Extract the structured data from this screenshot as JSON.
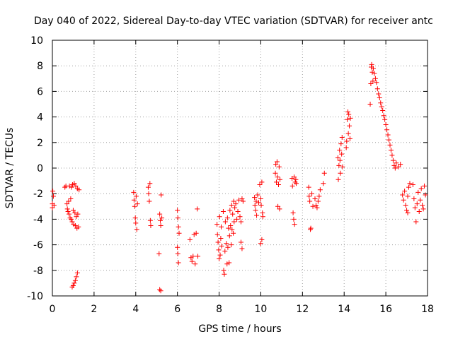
{
  "chart_data": {
    "type": "scatter",
    "title": "Day 040 of 2022, Sidereal Day-to-day VTEC variation (SDTVAR) for receiver antc",
    "xlabel": "GPS time / hours",
    "ylabel": "SDTVAR / TECUs",
    "xlim": [
      0,
      18
    ],
    "ylim": [
      -10,
      10
    ],
    "xticks": [
      0,
      2,
      4,
      6,
      8,
      10,
      12,
      14,
      16,
      18
    ],
    "yticks": [
      -10,
      -8,
      -6,
      -4,
      -2,
      0,
      2,
      4,
      6,
      8,
      10
    ],
    "grid": true,
    "marker": "plus",
    "color": "#ff0000",
    "series": [
      {
        "name": "SDTVAR",
        "points": [
          [
            0.0,
            -2.8
          ],
          [
            0.0,
            -3.1
          ],
          [
            0.02,
            -1.8
          ],
          [
            0.05,
            -2.2
          ],
          [
            0.08,
            -2.9
          ],
          [
            0.6,
            -1.5
          ],
          [
            0.65,
            -1.4
          ],
          [
            0.7,
            -2.8
          ],
          [
            0.72,
            -3.2
          ],
          [
            0.75,
            -3.4
          ],
          [
            0.78,
            -2.6
          ],
          [
            0.8,
            -3.6
          ],
          [
            0.82,
            -1.4
          ],
          [
            0.85,
            -3.9
          ],
          [
            0.88,
            -2.4
          ],
          [
            0.9,
            -4.0
          ],
          [
            0.92,
            -1.5
          ],
          [
            0.95,
            -4.2
          ],
          [
            0.97,
            -1.3
          ],
          [
            1.0,
            -3.3
          ],
          [
            1.02,
            -4.4
          ],
          [
            1.05,
            -1.2
          ],
          [
            1.08,
            -3.5
          ],
          [
            1.1,
            -4.5
          ],
          [
            1.12,
            -1.4
          ],
          [
            1.15,
            -3.8
          ],
          [
            1.18,
            -4.7
          ],
          [
            1.2,
            -1.6
          ],
          [
            1.22,
            -3.6
          ],
          [
            1.25,
            -4.6
          ],
          [
            1.28,
            -1.7
          ],
          [
            0.95,
            -9.3
          ],
          [
            1.0,
            -9.2
          ],
          [
            1.05,
            -9.0
          ],
          [
            1.1,
            -8.8
          ],
          [
            1.15,
            -8.5
          ],
          [
            1.2,
            -8.2
          ],
          [
            3.9,
            -1.9
          ],
          [
            3.92,
            -2.5
          ],
          [
            3.95,
            -3.0
          ],
          [
            3.98,
            -3.9
          ],
          [
            4.0,
            -4.3
          ],
          [
            4.02,
            -2.2
          ],
          [
            4.05,
            -4.8
          ],
          [
            4.08,
            -2.8
          ],
          [
            4.6,
            -1.5
          ],
          [
            4.62,
            -2.0
          ],
          [
            4.65,
            -2.6
          ],
          [
            4.68,
            -1.2
          ],
          [
            4.7,
            -4.1
          ],
          [
            4.72,
            -4.5
          ],
          [
            5.15,
            -3.6
          ],
          [
            5.18,
            -4.1
          ],
          [
            5.2,
            -4.5
          ],
          [
            5.22,
            -2.1
          ],
          [
            5.25,
            -3.9
          ],
          [
            5.12,
            -6.7
          ],
          [
            5.15,
            -9.5
          ],
          [
            5.2,
            -9.6
          ],
          [
            6.0,
            -3.3
          ],
          [
            6.02,
            -3.9
          ],
          [
            6.05,
            -4.6
          ],
          [
            6.0,
            -6.2
          ],
          [
            6.02,
            -6.7
          ],
          [
            6.05,
            -7.4
          ],
          [
            6.08,
            -5.1
          ],
          [
            6.6,
            -5.6
          ],
          [
            6.65,
            -7.0
          ],
          [
            6.7,
            -7.3
          ],
          [
            6.75,
            -6.9
          ],
          [
            6.8,
            -5.2
          ],
          [
            6.85,
            -7.5
          ],
          [
            6.9,
            -5.1
          ],
          [
            6.95,
            -3.2
          ],
          [
            6.98,
            -6.9
          ],
          [
            7.9,
            -4.4
          ],
          [
            7.92,
            -5.2
          ],
          [
            7.95,
            -5.8
          ],
          [
            7.98,
            -6.4
          ],
          [
            8.0,
            -7.1
          ],
          [
            8.02,
            -3.8
          ],
          [
            8.05,
            -6.8
          ],
          [
            8.08,
            -5.5
          ],
          [
            8.1,
            -4.6
          ],
          [
            8.12,
            -6.1
          ],
          [
            8.2,
            -3.4
          ],
          [
            8.22,
            -8.0
          ],
          [
            8.25,
            -8.3
          ],
          [
            8.28,
            -6.5
          ],
          [
            8.3,
            -4.2
          ],
          [
            8.35,
            -5.9
          ],
          [
            8.38,
            -7.5
          ],
          [
            8.4,
            -3.9
          ],
          [
            8.42,
            -6.2
          ],
          [
            8.45,
            -4.7
          ],
          [
            8.48,
            -7.4
          ],
          [
            8.5,
            -5.3
          ],
          [
            8.52,
            -3.3
          ],
          [
            8.55,
            -4.5
          ],
          [
            8.58,
            -6.0
          ],
          [
            8.6,
            -2.9
          ],
          [
            8.62,
            -4.8
          ],
          [
            8.65,
            -3.6
          ],
          [
            8.68,
            -5.1
          ],
          [
            8.7,
            -2.6
          ],
          [
            8.72,
            -4.2
          ],
          [
            8.75,
            -3.1
          ],
          [
            8.8,
            -2.8
          ],
          [
            8.85,
            -4.0
          ],
          [
            8.9,
            -3.4
          ],
          [
            8.95,
            -2.5
          ],
          [
            9.0,
            -3.8
          ],
          [
            9.05,
            -4.2
          ],
          [
            9.1,
            -2.4
          ],
          [
            9.15,
            -2.6
          ],
          [
            9.05,
            -5.8
          ],
          [
            9.1,
            -6.3
          ],
          [
            9.7,
            -2.3
          ],
          [
            9.72,
            -2.9
          ],
          [
            9.75,
            -3.3
          ],
          [
            9.78,
            -2.6
          ],
          [
            9.8,
            -3.7
          ],
          [
            9.85,
            -2.1
          ],
          [
            9.9,
            -2.7
          ],
          [
            9.95,
            -1.3
          ],
          [
            10.0,
            -2.4
          ],
          [
            10.02,
            -2.9
          ],
          [
            10.05,
            -1.1
          ],
          [
            10.08,
            -3.5
          ],
          [
            10.1,
            -3.8
          ],
          [
            10.0,
            -5.9
          ],
          [
            10.05,
            -5.6
          ],
          [
            10.7,
            -0.4
          ],
          [
            10.72,
            0.3
          ],
          [
            10.75,
            -1.1
          ],
          [
            10.78,
            0.5
          ],
          [
            10.8,
            -0.7
          ],
          [
            10.82,
            -3.0
          ],
          [
            10.85,
            -1.3
          ],
          [
            10.88,
            0.1
          ],
          [
            10.9,
            -3.2
          ],
          [
            10.92,
            -0.9
          ],
          [
            11.5,
            -0.8
          ],
          [
            11.52,
            -1.4
          ],
          [
            11.55,
            -3.5
          ],
          [
            11.58,
            -4.0
          ],
          [
            11.6,
            -0.7
          ],
          [
            11.62,
            -4.4
          ],
          [
            11.65,
            -1.1
          ],
          [
            11.68,
            -0.9
          ],
          [
            11.7,
            -1.2
          ],
          [
            12.3,
            -1.5
          ],
          [
            12.32,
            -2.2
          ],
          [
            12.35,
            -2.6
          ],
          [
            12.38,
            -4.8
          ],
          [
            12.4,
            -4.7
          ],
          [
            12.45,
            -2.0
          ],
          [
            12.5,
            -3.0
          ],
          [
            12.6,
            -2.4
          ],
          [
            12.65,
            -2.9
          ],
          [
            12.7,
            -3.1
          ],
          [
            12.75,
            -2.6
          ],
          [
            12.8,
            -2.2
          ],
          [
            12.85,
            -1.7
          ],
          [
            13.0,
            -1.2
          ],
          [
            13.05,
            -0.4
          ],
          [
            13.7,
            0.8
          ],
          [
            13.72,
            -0.9
          ],
          [
            13.75,
            0.2
          ],
          [
            13.78,
            1.4
          ],
          [
            13.8,
            0.6
          ],
          [
            13.82,
            -0.4
          ],
          [
            13.85,
            1.9
          ],
          [
            13.88,
            1.1
          ],
          [
            13.9,
            2.4
          ],
          [
            13.92,
            0.1
          ],
          [
            14.1,
            1.6
          ],
          [
            14.12,
            2.1
          ],
          [
            14.15,
            3.8
          ],
          [
            14.18,
            4.4
          ],
          [
            14.2,
            2.7
          ],
          [
            14.22,
            4.2
          ],
          [
            14.25,
            3.3
          ],
          [
            14.28,
            2.3
          ],
          [
            14.3,
            3.9
          ],
          [
            15.25,
            5.0
          ],
          [
            15.28,
            6.6
          ],
          [
            15.3,
            7.9
          ],
          [
            15.32,
            8.1
          ],
          [
            15.35,
            7.5
          ],
          [
            15.38,
            6.8
          ],
          [
            15.4,
            7.8
          ],
          [
            15.45,
            7.4
          ],
          [
            15.5,
            7.0
          ],
          [
            15.55,
            6.7
          ],
          [
            15.6,
            6.2
          ],
          [
            15.65,
            5.8
          ],
          [
            15.7,
            5.5
          ],
          [
            15.75,
            5.1
          ],
          [
            15.8,
            4.8
          ],
          [
            15.85,
            4.5
          ],
          [
            15.9,
            4.1
          ],
          [
            15.95,
            3.8
          ],
          [
            16.0,
            3.4
          ],
          [
            16.05,
            3.0
          ],
          [
            16.1,
            2.6
          ],
          [
            16.15,
            2.2
          ],
          [
            16.2,
            1.8
          ],
          [
            16.25,
            1.4
          ],
          [
            16.3,
            1.0
          ],
          [
            16.35,
            0.6
          ],
          [
            16.4,
            0.2
          ],
          [
            16.45,
            0.0
          ],
          [
            16.5,
            0.4
          ],
          [
            16.6,
            0.1
          ],
          [
            16.7,
            0.3
          ],
          [
            16.8,
            -2.1
          ],
          [
            16.85,
            -2.5
          ],
          [
            16.9,
            -1.8
          ],
          [
            16.95,
            -2.9
          ],
          [
            17.0,
            -3.3
          ],
          [
            17.05,
            -2.2
          ],
          [
            17.1,
            -1.5
          ],
          [
            17.15,
            -1.2
          ],
          [
            17.05,
            -3.5
          ],
          [
            17.3,
            -1.3
          ],
          [
            17.35,
            -2.4
          ],
          [
            17.4,
            -3.1
          ],
          [
            17.45,
            -4.2
          ],
          [
            17.5,
            -2.8
          ],
          [
            17.55,
            -1.9
          ],
          [
            17.6,
            -3.4
          ],
          [
            17.65,
            -2.5
          ],
          [
            17.7,
            -1.6
          ],
          [
            17.75,
            -2.9
          ],
          [
            17.8,
            -3.2
          ],
          [
            17.85,
            -1.4
          ],
          [
            17.9,
            -2.1
          ]
        ]
      }
    ]
  }
}
